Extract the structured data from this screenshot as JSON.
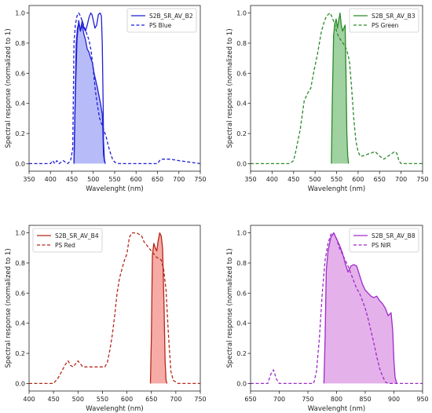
{
  "chart_data": [
    {
      "type": "line",
      "xlabel": "Wavelenght (nm)",
      "ylabel": "Spectral response (normalized to 1)",
      "xlim": [
        350,
        750
      ],
      "ylim": [
        -0.05,
        1.05
      ],
      "xticks": [
        350,
        400,
        450,
        500,
        550,
        600,
        650,
        700,
        750
      ],
      "yticks": [
        0.0,
        0.2,
        0.4,
        0.6,
        0.8,
        1.0
      ],
      "color": "#1f1fd6",
      "fill": "#aab0f8",
      "legend_position": "top-right",
      "series": [
        {
          "name": "S2B_SR_AV_B2",
          "style": "solid",
          "filled": true,
          "x": [
            455,
            458,
            460,
            463,
            466,
            470,
            474,
            478,
            482,
            486,
            490,
            494,
            498,
            502,
            506,
            510,
            514,
            517,
            519,
            521,
            522,
            523,
            524,
            526,
            528
          ],
          "y": [
            0.0,
            0.5,
            0.8,
            0.9,
            0.93,
            0.88,
            0.92,
            0.86,
            0.82,
            0.76,
            0.74,
            0.7,
            0.67,
            0.6,
            0.55,
            0.5,
            0.44,
            0.4,
            0.36,
            0.33,
            0.28,
            0.15,
            0.06,
            0.02,
            0.0
          ]
        },
        {
          "name": "S2B_SR_AV_B2",
          "style": "solid",
          "filled": false,
          "x": [
            455,
            458,
            462,
            466,
            470,
            474,
            478,
            482,
            486,
            490,
            494,
            497,
            500,
            504,
            508,
            512,
            516,
            519,
            521,
            523,
            524,
            526,
            528
          ],
          "y": [
            0.0,
            0.45,
            0.82,
            0.95,
            0.88,
            0.95,
            0.9,
            0.88,
            0.92,
            0.97,
            1.0,
            0.99,
            0.95,
            0.9,
            0.92,
            0.99,
            1.0,
            0.98,
            0.8,
            0.4,
            0.15,
            0.03,
            0.0
          ]
        },
        {
          "name": "PS Blue",
          "style": "dashed",
          "filled": false,
          "x": [
            350,
            400,
            405,
            410,
            415,
            420,
            430,
            440,
            447,
            452,
            455,
            458,
            462,
            466,
            470,
            475,
            480,
            485,
            490,
            495,
            500,
            505,
            510,
            515,
            520,
            525,
            530,
            535,
            540,
            545,
            550,
            560,
            570,
            600,
            650,
            655,
            660,
            680,
            700,
            750
          ],
          "y": [
            0.0,
            0.0,
            0.02,
            0.0,
            0.02,
            0.0,
            0.02,
            0.0,
            0.02,
            0.1,
            0.8,
            0.92,
            0.98,
            1.0,
            0.98,
            0.94,
            0.9,
            0.86,
            0.82,
            0.75,
            0.62,
            0.48,
            0.38,
            0.3,
            0.26,
            0.22,
            0.18,
            0.12,
            0.07,
            0.03,
            0.01,
            0.0,
            0.0,
            0.0,
            0.0,
            0.02,
            0.03,
            0.03,
            0.02,
            0.0
          ]
        }
      ]
    },
    {
      "type": "line",
      "xlabel": "Wavelenght (nm)",
      "ylabel": "Spectral response (normalized to 1)",
      "xlim": [
        350,
        750
      ],
      "ylim": [
        -0.05,
        1.05
      ],
      "xticks": [
        350,
        400,
        450,
        500,
        550,
        600,
        650,
        700,
        750
      ],
      "yticks": [
        0.0,
        0.2,
        0.4,
        0.6,
        0.8,
        1.0
      ],
      "color": "#2a8a2a",
      "fill": "#8fc98f",
      "legend_position": "top-right",
      "series": [
        {
          "name": "S2B_SR_AV_B3",
          "style": "solid",
          "filled": true,
          "x": [
            538,
            540,
            543,
            546,
            549,
            552,
            555,
            558,
            561,
            564,
            567,
            570,
            572,
            574,
            576,
            578
          ],
          "y": [
            0.0,
            0.4,
            0.85,
            0.93,
            0.96,
            0.9,
            0.95,
            1.0,
            0.92,
            0.88,
            0.9,
            0.92,
            0.6,
            0.2,
            0.05,
            0.0
          ]
        },
        {
          "name": "PS Green",
          "style": "dashed",
          "filled": false,
          "x": [
            350,
            430,
            440,
            450,
            455,
            460,
            465,
            470,
            475,
            480,
            485,
            490,
            495,
            500,
            505,
            510,
            515,
            520,
            525,
            530,
            535,
            540,
            545,
            550,
            555,
            560,
            565,
            570,
            575,
            580,
            585,
            590,
            595,
            600,
            605,
            610,
            620,
            630,
            640,
            650,
            660,
            670,
            680,
            685,
            690,
            695,
            700,
            750
          ],
          "y": [
            0.0,
            0.0,
            0.0,
            0.02,
            0.08,
            0.15,
            0.22,
            0.32,
            0.42,
            0.45,
            0.48,
            0.5,
            0.58,
            0.65,
            0.72,
            0.8,
            0.88,
            0.93,
            0.97,
            0.99,
            1.0,
            0.97,
            0.93,
            0.88,
            0.84,
            0.82,
            0.8,
            0.78,
            0.74,
            0.68,
            0.5,
            0.3,
            0.15,
            0.08,
            0.05,
            0.05,
            0.06,
            0.07,
            0.08,
            0.05,
            0.03,
            0.05,
            0.07,
            0.08,
            0.07,
            0.02,
            0.0,
            0.0
          ]
        }
      ]
    },
    {
      "type": "line",
      "xlabel": "Wavelenght (nm)",
      "ylabel": "Spectral response (normalized to 1)",
      "xlim": [
        400,
        750
      ],
      "ylim": [
        -0.05,
        1.05
      ],
      "xticks": [
        400,
        450,
        500,
        550,
        600,
        650,
        700,
        750
      ],
      "yticks": [
        0.0,
        0.2,
        0.4,
        0.6,
        0.8,
        1.0
      ],
      "color": "#b5281a",
      "fill": "#f59c96",
      "legend_position": "top-left",
      "series": [
        {
          "name": "S2B_SR_AV_B4",
          "style": "solid",
          "filled": true,
          "x": [
            648,
            650,
            652,
            655,
            658,
            661,
            664,
            667,
            670,
            673,
            676,
            678,
            680,
            682
          ],
          "y": [
            0.0,
            0.3,
            0.85,
            0.93,
            0.9,
            0.88,
            0.95,
            1.0,
            0.98,
            0.9,
            0.5,
            0.15,
            0.02,
            0.0
          ]
        },
        {
          "name": "PS Red",
          "style": "dashed",
          "filled": false,
          "x": [
            400,
            440,
            450,
            455,
            460,
            465,
            470,
            475,
            480,
            485,
            490,
            495,
            500,
            505,
            510,
            515,
            520,
            540,
            555,
            560,
            565,
            570,
            575,
            580,
            585,
            590,
            595,
            600,
            605,
            610,
            615,
            620,
            625,
            630,
            635,
            640,
            645,
            650,
            655,
            660,
            665,
            670,
            675,
            680,
            685,
            690,
            695,
            700,
            705,
            750
          ],
          "y": [
            0.0,
            0.0,
            0.0,
            0.02,
            0.04,
            0.07,
            0.1,
            0.13,
            0.15,
            0.12,
            0.11,
            0.13,
            0.15,
            0.13,
            0.11,
            0.11,
            0.11,
            0.11,
            0.11,
            0.14,
            0.22,
            0.32,
            0.45,
            0.6,
            0.7,
            0.76,
            0.82,
            0.86,
            0.97,
            1.0,
            1.0,
            1.0,
            0.99,
            0.98,
            0.94,
            0.92,
            0.9,
            0.88,
            0.86,
            0.84,
            0.83,
            0.82,
            0.76,
            0.62,
            0.32,
            0.08,
            0.02,
            0.01,
            0.0,
            0.0
          ]
        }
      ]
    },
    {
      "type": "line",
      "xlabel": "Wavelenght (nm)",
      "ylabel": "Spectral response (normalized to 1)",
      "xlim": [
        650,
        950
      ],
      "ylim": [
        -0.05,
        1.05
      ],
      "xticks": [
        650,
        700,
        750,
        800,
        850,
        900,
        950
      ],
      "yticks": [
        0.0,
        0.2,
        0.4,
        0.6,
        0.8,
        1.0
      ],
      "color": "#9d2bc7",
      "fill": "#e0a3e8",
      "legend_position": "top-right",
      "series": [
        {
          "name": "S2B_SR_AV_B8",
          "style": "solid",
          "filled": true,
          "x": [
            778,
            780,
            782,
            785,
            790,
            795,
            800,
            805,
            810,
            815,
            820,
            825,
            830,
            835,
            840,
            845,
            850,
            855,
            860,
            865,
            870,
            875,
            880,
            885,
            890,
            895,
            898,
            900,
            902,
            905
          ],
          "y": [
            0.0,
            0.3,
            0.75,
            0.88,
            0.97,
            1.0,
            0.96,
            0.92,
            0.87,
            0.8,
            0.74,
            0.78,
            0.79,
            0.78,
            0.72,
            0.66,
            0.62,
            0.6,
            0.58,
            0.57,
            0.58,
            0.55,
            0.53,
            0.5,
            0.45,
            0.47,
            0.35,
            0.15,
            0.04,
            0.0
          ]
        },
        {
          "name": "PS NIR",
          "style": "dashed",
          "filled": false,
          "x": [
            650,
            680,
            685,
            690,
            695,
            700,
            760,
            765,
            770,
            775,
            780,
            785,
            790,
            795,
            800,
            805,
            810,
            815,
            820,
            825,
            830,
            835,
            840,
            845,
            850,
            855,
            860,
            865,
            870,
            875,
            880,
            885,
            890,
            950
          ],
          "y": [
            0.0,
            0.0,
            0.06,
            0.09,
            0.03,
            0.0,
            0.0,
            0.08,
            0.3,
            0.6,
            0.82,
            0.93,
            0.99,
            1.0,
            0.96,
            0.9,
            0.86,
            0.82,
            0.78,
            0.73,
            0.68,
            0.63,
            0.6,
            0.55,
            0.5,
            0.43,
            0.35,
            0.27,
            0.18,
            0.1,
            0.05,
            0.01,
            0.0,
            0.0
          ]
        }
      ]
    }
  ]
}
